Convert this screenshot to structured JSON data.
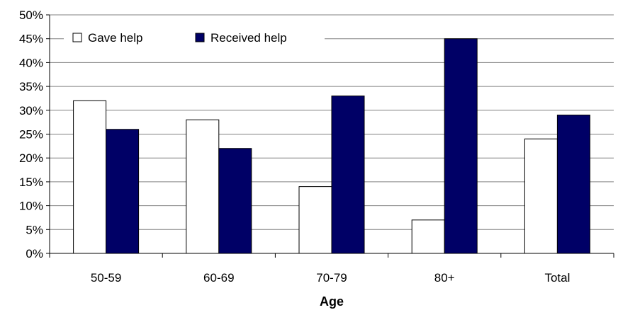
{
  "chart_data": {
    "type": "bar",
    "title": "",
    "xlabel": "Age",
    "ylabel": "",
    "categories": [
      "50-59",
      "60-69",
      "70-79",
      "80+",
      "Total"
    ],
    "series": [
      {
        "name": "Gave help",
        "values": [
          32,
          28,
          14,
          7,
          24
        ],
        "color": "#ffffff"
      },
      {
        "name": "Received help",
        "values": [
          26,
          22,
          33,
          45,
          29
        ],
        "color": "#000066"
      }
    ],
    "ylim": [
      0,
      50
    ],
    "yticks": [
      0,
      5,
      10,
      15,
      20,
      25,
      30,
      35,
      40,
      45,
      50
    ],
    "ytick_labels": [
      "0%",
      "5%",
      "10%",
      "15%",
      "20%",
      "25%",
      "30%",
      "35%",
      "40%",
      "45%",
      "50%"
    ],
    "grid": true,
    "legend": "top-left"
  }
}
